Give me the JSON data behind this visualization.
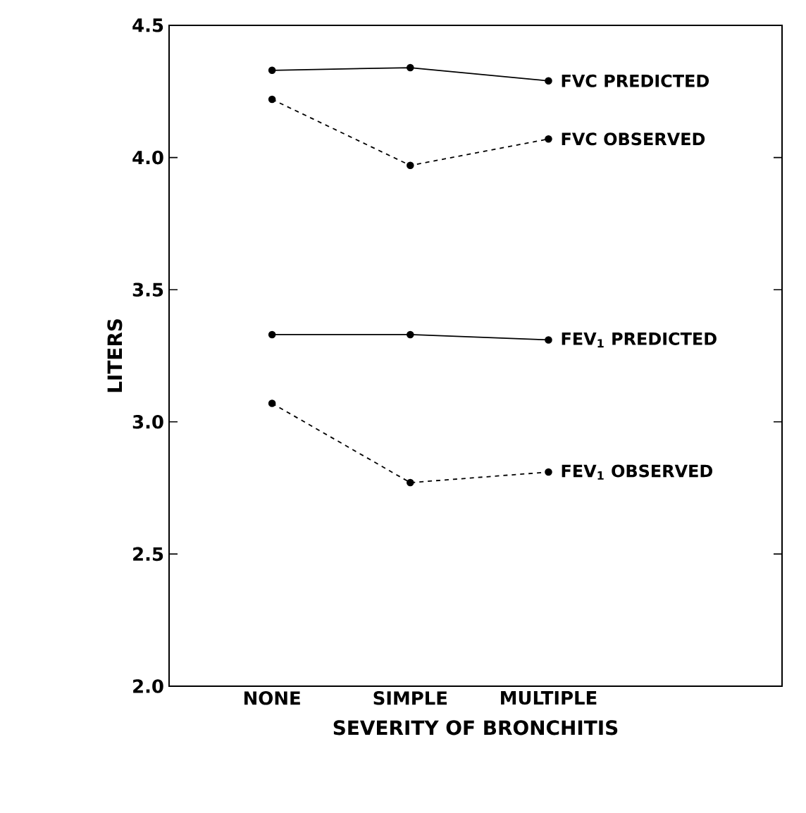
{
  "chart_data": {
    "type": "line",
    "xlabel": "SEVERITY OF BRONCHITIS",
    "ylabel": "LITERS",
    "categories": [
      "NONE",
      "SIMPLE",
      "MULTIPLE"
    ],
    "series": [
      {
        "name": "FVC PREDICTED",
        "color": "#000000",
        "line_style": "solid",
        "values": [
          4.33,
          4.34,
          4.29
        ]
      },
      {
        "name": "FVC OBSERVED",
        "color": "#000000",
        "line_style": "dashed",
        "values": [
          4.22,
          3.97,
          4.07
        ]
      },
      {
        "name": "FEV$_{1}$ PREDICTED",
        "color": "#000000",
        "line_style": "solid",
        "values": [
          3.33,
          3.33,
          3.31
        ]
      },
      {
        "name": "FEV$_{1}$ OBSERVED",
        "color": "#000000",
        "line_style": "dashed",
        "values": [
          3.07,
          2.77,
          2.81
        ]
      }
    ],
    "ylim": [
      2.0,
      4.5
    ],
    "yticks": [
      {
        "value": 2.0,
        "label": "2.0"
      },
      {
        "value": 2.5,
        "label": "2.5"
      },
      {
        "value": 3.0,
        "label": "3.0"
      },
      {
        "value": 3.5,
        "label": "3.5"
      },
      {
        "value": 4.0,
        "label": "4.0"
      },
      {
        "value": 4.5,
        "label": "4.5"
      }
    ],
    "marker": "circle",
    "grid": false
  }
}
